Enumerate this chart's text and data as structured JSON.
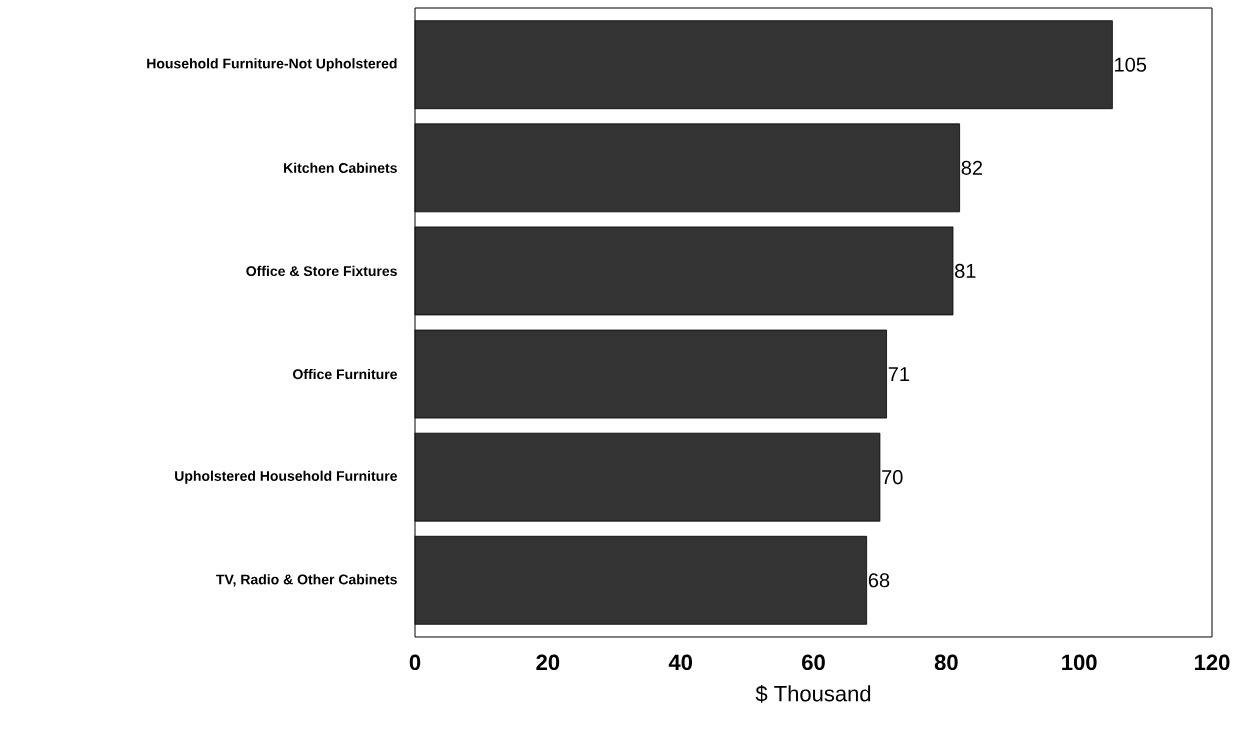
{
  "chart_data": {
    "type": "bar",
    "orientation": "horizontal",
    "xlabel": "$ Thousand",
    "categories": [
      "Household Furniture-Not Upholstered",
      "Kitchen Cabinets",
      "Office & Store Fixtures",
      "Office Furniture",
      "Upholstered Household Furniture",
      "TV, Radio & Other Cabinets"
    ],
    "values": [
      105,
      82,
      81,
      71,
      70,
      68
    ],
    "color": "#333333",
    "xlim": [
      0,
      120
    ],
    "xticks": [
      0,
      20,
      40,
      60,
      80,
      100,
      120
    ],
    "data_labels": true
  }
}
